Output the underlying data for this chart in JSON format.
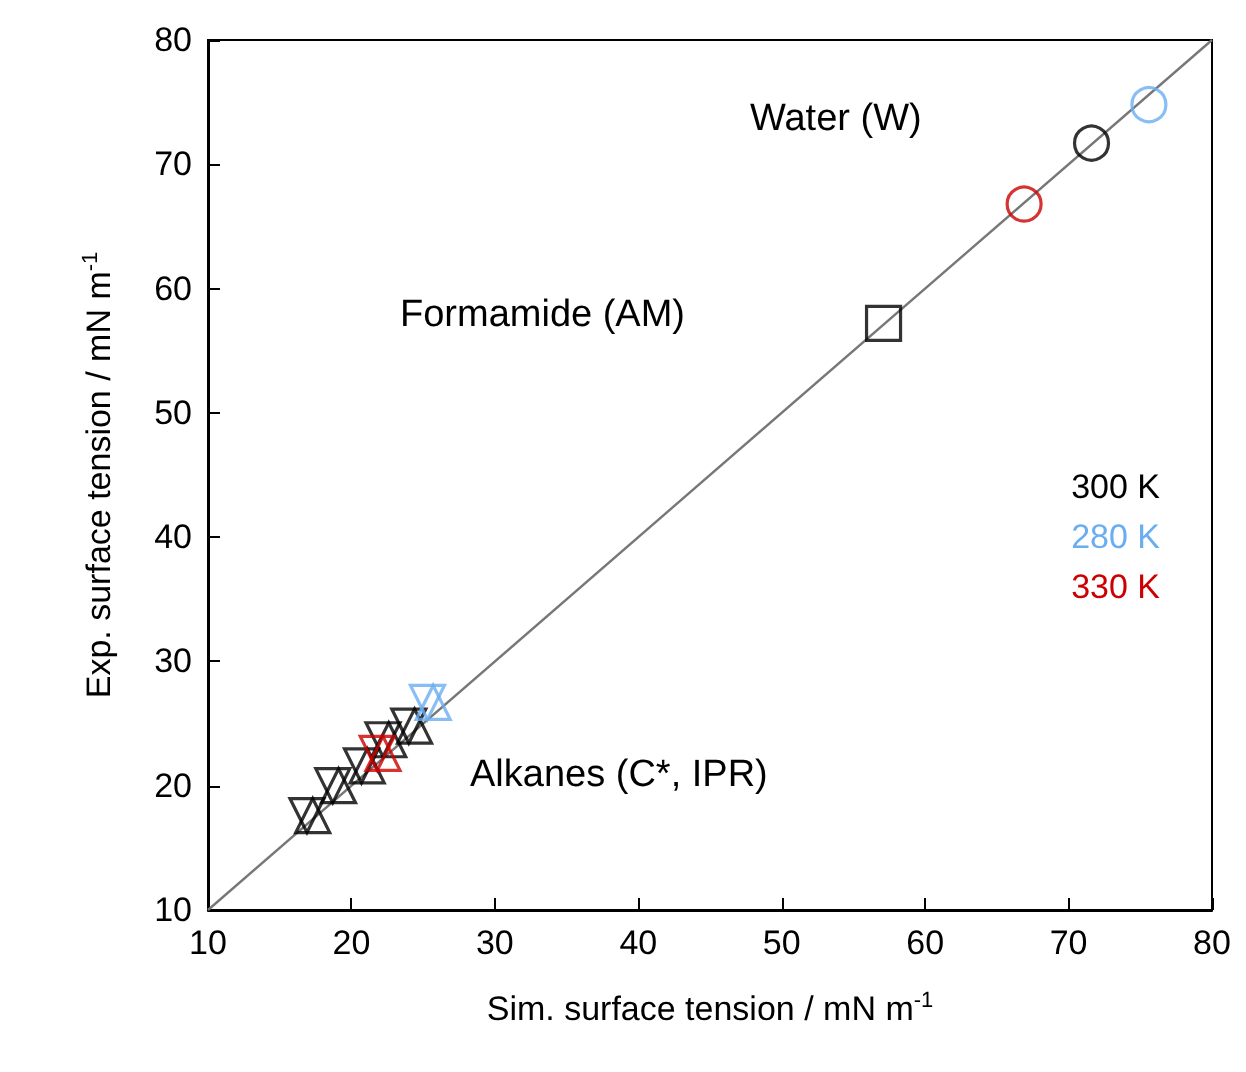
{
  "chart_data": {
    "type": "scatter",
    "xlabel": "Sim. surface tension / mN m$^{-1}$",
    "ylabel": "Exp. surface tension / mN m$^{-1}$",
    "xlim": [
      10,
      80
    ],
    "ylim": [
      10,
      80
    ],
    "xticks": [
      10,
      20,
      30,
      40,
      50,
      60,
      70,
      80
    ],
    "yticks": [
      10,
      20,
      30,
      40,
      50,
      60,
      70,
      80
    ],
    "grid": false,
    "legend": "right",
    "series": [
      {
        "name": "300 K",
        "color": "#000000",
        "marker": "circle",
        "x": [
          71.6
        ],
        "values": [
          71.7
        ]
      },
      {
        "color": "#000000",
        "marker": "square",
        "x": [
          57.1
        ],
        "values": [
          57.2
        ]
      },
      {
        "color": "#000000",
        "marker": "triangle",
        "x": [
          17.3,
          19.1,
          21.1,
          22.6,
          24.4
        ],
        "values": [
          17.6,
          20.0,
          21.6,
          23.7,
          24.8
        ]
      },
      {
        "color": "#000000",
        "marker": "triangle-down",
        "x": [
          16.9,
          18.7,
          20.7,
          22.2,
          24.0
        ],
        "values": [
          17.6,
          20.0,
          21.6,
          23.7,
          24.8
        ]
      },
      {
        "name": "280 K",
        "color": "#6aaef0",
        "marker": "circle",
        "x": [
          75.6
        ],
        "values": [
          74.8
        ]
      },
      {
        "color": "#6aaef0",
        "marker": "triangle",
        "x": [
          25.7
        ],
        "values": [
          26.7
        ]
      },
      {
        "color": "#6aaef0",
        "marker": "triangle-down",
        "x": [
          25.3
        ],
        "values": [
          26.7
        ]
      },
      {
        "name": "330 K",
        "color": "#cc0000",
        "marker": "circle",
        "x": [
          66.9
        ],
        "values": [
          66.8
        ]
      },
      {
        "color": "#cc0000",
        "marker": "triangle",
        "x": [
          22.2
        ],
        "values": [
          22.6
        ]
      },
      {
        "color": "#cc0000",
        "marker": "triangle-down",
        "x": [
          21.8
        ],
        "values": [
          22.6
        ]
      },
      {
        "type": "line",
        "color": "#777777",
        "x": [
          10,
          80
        ],
        "values": [
          10,
          80
        ]
      }
    ],
    "annotations": [
      "Water (W)",
      "Formamide (AM)",
      "Alkanes (C*, IPR)"
    ]
  }
}
